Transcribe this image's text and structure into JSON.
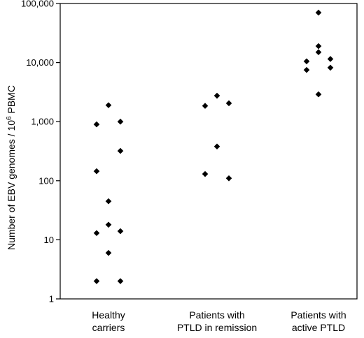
{
  "chart_data": {
    "type": "scatter",
    "title": "",
    "xlabel": "",
    "ylabel": {
      "main": "Number of EBV genomes / 10",
      "superscript": "6",
      "suffix": " PBMC"
    },
    "yscale": "log",
    "ylim": [
      1,
      100000
    ],
    "y_ticks": [
      {
        "value": 1,
        "label": "1"
      },
      {
        "value": 10,
        "label": "10"
      },
      {
        "value": 100,
        "label": "100"
      },
      {
        "value": 1000,
        "label": "1,000"
      },
      {
        "value": 10000,
        "label": "10,000"
      },
      {
        "value": 100000,
        "label": "100,000"
      }
    ],
    "grid": false,
    "legend": "none",
    "marker": "diamond",
    "marker_color": "#000000",
    "categories": [
      {
        "lines": [
          "Healthy",
          "carriers"
        ]
      },
      {
        "lines": [
          "Patients with",
          "PTLD in remission"
        ]
      },
      {
        "lines": [
          "Patients with",
          "active PTLD"
        ]
      }
    ],
    "points": [
      {
        "group": 0,
        "offset": 0,
        "y": 1900
      },
      {
        "group": 0,
        "offset": -1,
        "y": 900
      },
      {
        "group": 0,
        "offset": 1,
        "y": 1000
      },
      {
        "group": 0,
        "offset": 1,
        "y": 320
      },
      {
        "group": 0,
        "offset": -1,
        "y": 145
      },
      {
        "group": 0,
        "offset": 0,
        "y": 45
      },
      {
        "group": 0,
        "offset": 0,
        "y": 18
      },
      {
        "group": 0,
        "offset": -1,
        "y": 13
      },
      {
        "group": 0,
        "offset": 1,
        "y": 14
      },
      {
        "group": 0,
        "offset": 0,
        "y": 6
      },
      {
        "group": 0,
        "offset": -1,
        "y": 2
      },
      {
        "group": 0,
        "offset": 1,
        "y": 2
      },
      {
        "group": 1,
        "offset": -1,
        "y": 1850
      },
      {
        "group": 1,
        "offset": 0,
        "y": 2750
      },
      {
        "group": 1,
        "offset": 1,
        "y": 2050
      },
      {
        "group": 1,
        "offset": 0,
        "y": 380
      },
      {
        "group": 1,
        "offset": -1,
        "y": 130
      },
      {
        "group": 1,
        "offset": 1,
        "y": 110
      },
      {
        "group": 2,
        "offset": 0,
        "y": 70000
      },
      {
        "group": 2,
        "offset": 0,
        "y": 19000
      },
      {
        "group": 2,
        "offset": 0,
        "y": 15000
      },
      {
        "group": 2,
        "offset": -1,
        "y": 10500
      },
      {
        "group": 2,
        "offset": 1,
        "y": 11500
      },
      {
        "group": 2,
        "offset": -1,
        "y": 7500
      },
      {
        "group": 2,
        "offset": 1,
        "y": 8200
      },
      {
        "group": 2,
        "offset": 0,
        "y": 2900
      }
    ]
  }
}
